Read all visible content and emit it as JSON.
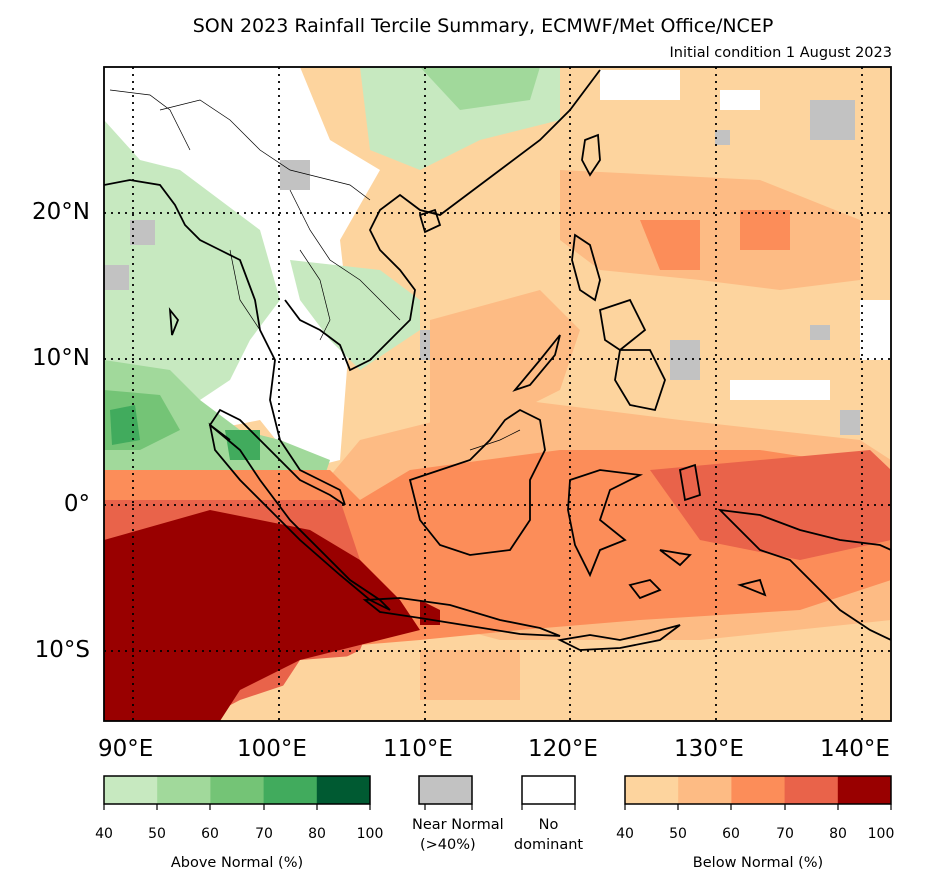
{
  "title": "SON 2023 Rainfall Tercile Summary, ECMWF/Met Office/NCEP",
  "subtitle": "Initial condition 1 August 2023",
  "lat_labels": [
    "20°N",
    "10°N",
    "0°",
    "10°S"
  ],
  "lon_labels": [
    "90°E",
    "100°E",
    "110°E",
    "120°E",
    "130°E",
    "140°E"
  ],
  "legend": {
    "above_ticks": [
      "40",
      "50",
      "60",
      "70",
      "80",
      "100"
    ],
    "above_caption": "Above Normal (%)",
    "near_normal_label_1": "Near Normal",
    "near_normal_label_2": "(>40%)",
    "no_dominant_label_1": "No",
    "no_dominant_label_2": "dominant",
    "below_ticks": [
      "40",
      "50",
      "60",
      "70",
      "80",
      "100"
    ],
    "below_caption": "Below Normal (%)",
    "above_colors": [
      "#c7e9c0",
      "#a1d99b",
      "#74c476",
      "#41ab5d",
      "#005a32"
    ],
    "near_normal_color": "#c2c2c2",
    "no_dominant_color": "#ffffff",
    "below_colors": [
      "#fdd49e",
      "#fdbb84",
      "#fc8d59",
      "#e9634a",
      "#990000"
    ]
  }
}
